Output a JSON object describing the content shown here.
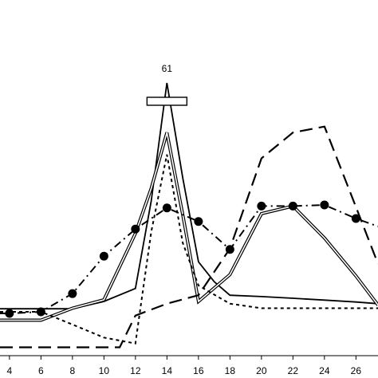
{
  "chart_data": {
    "type": "line",
    "title": "",
    "xlabel": "",
    "ylabel": "",
    "x_ticks": [
      4,
      6,
      8,
      10,
      12,
      14,
      16,
      18,
      20,
      22,
      24,
      26
    ],
    "x_tick_labels": [
      "4",
      "6",
      "8",
      "10",
      "12",
      "14",
      "16",
      "18",
      "20",
      "22",
      "24",
      "26"
    ],
    "x_axis_range": [
      3.4,
      27.4
    ],
    "y_axis_range": [
      0,
      100
    ],
    "grid": false,
    "legend": "none",
    "axis_break": {
      "x": 14,
      "label": "61"
    },
    "series": [
      {
        "style": "solid",
        "color": "#000000",
        "x": [
          3.4,
          4,
          6,
          8,
          10,
          12,
          13,
          14,
          15,
          16,
          17,
          18,
          20,
          22,
          24,
          26,
          27.4
        ],
        "y": [
          16.7,
          16.7,
          16.7,
          16.7,
          19.4,
          24.2,
          56.4,
          100,
          65.1,
          34,
          26.7,
          21.7,
          21.2,
          20.6,
          19.9,
          19.2,
          18.6
        ]
      },
      {
        "style": "double-line",
        "color": "#000000",
        "x": [
          3.4,
          4,
          6,
          8,
          10,
          12,
          13,
          14,
          15,
          16,
          18,
          20,
          22,
          24,
          26,
          27.4
        ],
        "y": [
          12.5,
          12.5,
          12.5,
          16.9,
          20,
          44.5,
          61.1,
          81.7,
          51.5,
          19.4,
          29.3,
          51.8,
          54.6,
          42.8,
          28.8,
          18.1
        ]
      },
      {
        "style": "dash-dot-circles",
        "color": "#000000",
        "markers": true,
        "x": [
          3.4,
          4,
          6,
          8,
          10,
          12,
          14,
          16,
          18,
          20,
          22,
          24,
          26,
          27.4
        ],
        "y": [
          15,
          15,
          15.6,
          22.3,
          36.1,
          46.1,
          53.9,
          48.9,
          38.6,
          54.6,
          54.6,
          55,
          50,
          47.1
        ]
      },
      {
        "style": "dotted",
        "color": "#000000",
        "x": [
          3.4,
          4,
          6,
          8,
          10,
          12,
          13,
          14,
          15,
          16,
          18,
          20,
          22,
          24,
          26,
          27.4
        ],
        "y": [
          15.6,
          15.6,
          15.6,
          10.9,
          6.1,
          3.9,
          45,
          73.6,
          41.1,
          25.3,
          18.6,
          16.9,
          16.9,
          16.9,
          16.9,
          16.9
        ]
      },
      {
        "style": "long-dash",
        "color": "#000000",
        "x": [
          3.4,
          4,
          6,
          8,
          10,
          11,
          12,
          14,
          16,
          18,
          20,
          22,
          24,
          26,
          27.4
        ],
        "y": [
          2.5,
          2.5,
          2.5,
          2.5,
          2.5,
          2.5,
          14.2,
          18.6,
          21.7,
          38.9,
          72.2,
          81.7,
          83.9,
          54.2,
          33.3
        ]
      }
    ]
  }
}
